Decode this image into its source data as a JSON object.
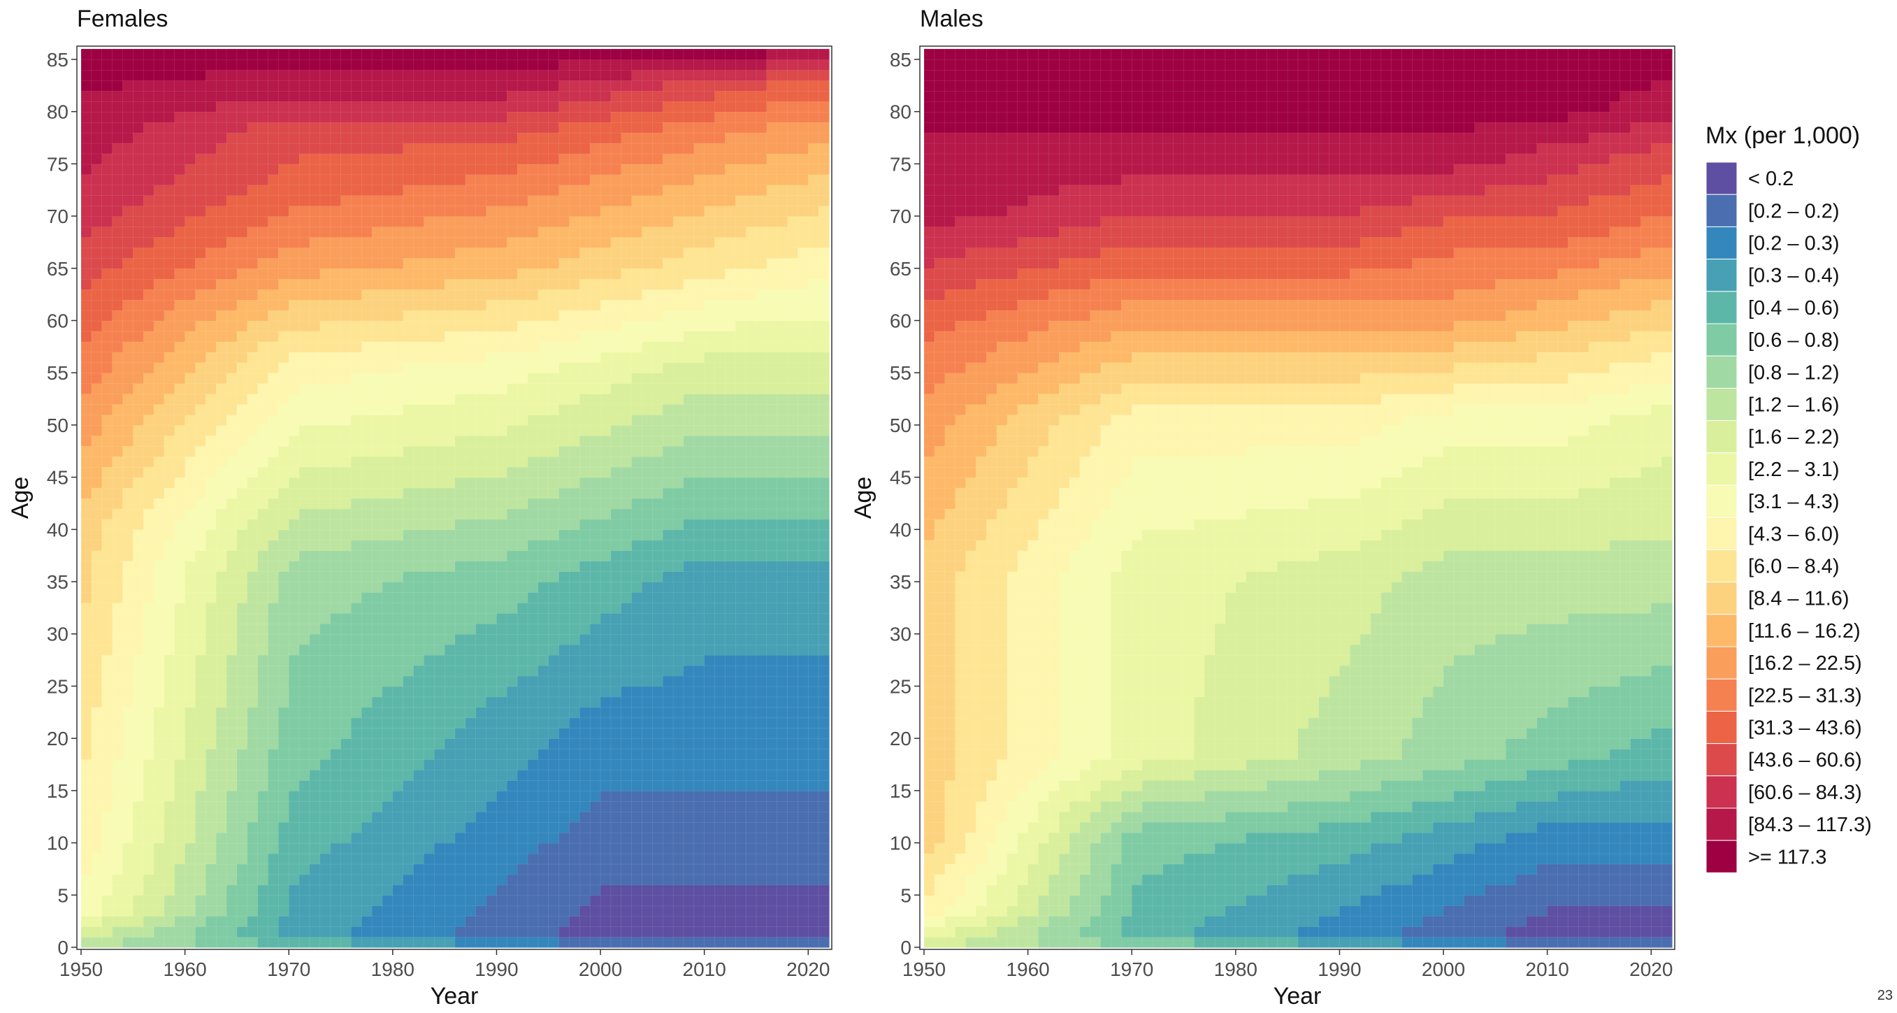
{
  "chart_data": {
    "type": "heatmap",
    "panels": [
      {
        "title": "Females",
        "xlabel": "Year",
        "ylabel": "Age",
        "xlim": [
          1950,
          2021
        ],
        "ylim": [
          0,
          85
        ],
        "x_ticks": [
          "1950",
          "1960",
          "1970",
          "1980",
          "1990",
          "2000",
          "2010",
          "2020"
        ],
        "y_ticks": [
          "0",
          "5",
          "10",
          "15",
          "20",
          "25",
          "30",
          "35",
          "40",
          "45",
          "50",
          "55",
          "60",
          "65",
          "70",
          "75",
          "80",
          "85"
        ],
        "anchor_years": [
          1950,
          1970,
          1990,
          2000,
          2010,
          2021
        ],
        "age_profiles": [
          [
            7,
            10,
            11,
            12,
            13,
            15,
            17,
            19,
            21
          ],
          [
            4,
            3,
            4,
            5,
            6,
            11,
            15,
            17,
            18,
            20,
            21
          ],
          [
            2,
            1,
            2,
            3,
            5,
            10,
            14,
            16,
            18,
            20,
            21
          ],
          [
            1,
            0,
            1,
            2,
            4,
            9,
            13,
            15,
            17,
            19,
            21
          ],
          [
            1,
            0,
            1,
            2,
            3,
            8,
            12,
            14,
            16,
            18,
            21
          ],
          [
            1,
            0,
            1,
            2,
            3,
            8,
            11,
            13,
            15,
            17,
            20
          ]
        ],
        "age_knots": [
          [
            0,
            3,
            10,
            25,
            40,
            50,
            60,
            70,
            85
          ],
          [
            0,
            1,
            10,
            20,
            35,
            55,
            65,
            72,
            78,
            82,
            85
          ],
          [
            0,
            1,
            10,
            20,
            35,
            55,
            65,
            72,
            78,
            82,
            85
          ],
          [
            0,
            1,
            10,
            20,
            35,
            55,
            65,
            72,
            78,
            82,
            85
          ],
          [
            0,
            1,
            10,
            20,
            35,
            55,
            65,
            72,
            78,
            82,
            85
          ],
          [
            0,
            1,
            10,
            20,
            35,
            55,
            65,
            72,
            78,
            82,
            85
          ]
        ]
      },
      {
        "title": "Males",
        "xlabel": "Year",
        "ylabel": "Age",
        "xlim": [
          1950,
          2021
        ],
        "ylim": [
          0,
          85
        ],
        "x_ticks": [
          "1950",
          "1960",
          "1970",
          "1980",
          "1990",
          "2000",
          "2010",
          "2020"
        ],
        "y_ticks": [
          "0",
          "5",
          "10",
          "15",
          "20",
          "25",
          "30",
          "35",
          "40",
          "45",
          "50",
          "55",
          "60",
          "65",
          "70",
          "75",
          "80",
          "85"
        ],
        "anchor_years": [
          1950,
          1970,
          1990,
          2000,
          2010,
          2021
        ],
        "age_profiles": [
          [
            8,
            11,
            13,
            13,
            13,
            15,
            17,
            20,
            21
          ],
          [
            5,
            4,
            5,
            9,
            9,
            11,
            15,
            18,
            20,
            21,
            21
          ],
          [
            3,
            2,
            4,
            7,
            8,
            11,
            15,
            18,
            20,
            21,
            21
          ],
          [
            2,
            1,
            3,
            6,
            7,
            10,
            15,
            17,
            20,
            21,
            21
          ],
          [
            1,
            0,
            2,
            5,
            7,
            10,
            14,
            17,
            19,
            21,
            21
          ],
          [
            1,
            0,
            2,
            4,
            7,
            9,
            13,
            16,
            18,
            20,
            21
          ]
        ],
        "age_knots": [
          [
            0,
            3,
            10,
            20,
            35,
            50,
            60,
            70,
            85
          ],
          [
            0,
            1,
            10,
            18,
            35,
            50,
            60,
            68,
            75,
            80,
            85
          ],
          [
            0,
            1,
            10,
            18,
            35,
            50,
            60,
            68,
            75,
            80,
            85
          ],
          [
            0,
            1,
            10,
            18,
            35,
            50,
            60,
            68,
            75,
            80,
            85
          ],
          [
            0,
            1,
            10,
            18,
            35,
            50,
            60,
            68,
            75,
            80,
            85
          ],
          [
            0,
            1,
            10,
            18,
            35,
            50,
            60,
            68,
            75,
            80,
            85
          ]
        ]
      }
    ],
    "legend": {
      "title": "Mx (per 1,000)",
      "placement": "right",
      "classes": [
        {
          "label": "< 0.2",
          "color": "#5E4FA2"
        },
        {
          "label": "[0.2 – 0.2)",
          "color": "#4A6EB0"
        },
        {
          "label": "[0.2 – 0.3)",
          "color": "#3487BD"
        },
        {
          "label": "[0.3 – 0.4)",
          "color": "#47A0B3"
        },
        {
          "label": "[0.4 – 0.6)",
          "color": "#5DB7A9"
        },
        {
          "label": "[0.6 – 0.8)",
          "color": "#7FCBA4"
        },
        {
          "label": "[0.8 – 1.2)",
          "color": "#A0D9A3"
        },
        {
          "label": "[1.2 – 1.6)",
          "color": "#BEE5A0"
        },
        {
          "label": "[1.6 – 2.2)",
          "color": "#D9EF9B"
        },
        {
          "label": "[2.2 – 3.1)",
          "color": "#EBF7A5"
        },
        {
          "label": "[3.1 – 4.3)",
          "color": "#F7FBB3"
        },
        {
          "label": "[4.3 – 6.0)",
          "color": "#FEF5AF"
        },
        {
          "label": "[6.0 – 8.4)",
          "color": "#FEE593"
        },
        {
          "label": "[8.4 – 11.6)",
          "color": "#FDD27F"
        },
        {
          "label": "[11.6 – 16.2)",
          "color": "#FDB968"
        },
        {
          "label": "[16.2 – 22.5)",
          "color": "#FA9E5B"
        },
        {
          "label": "[22.5 – 31.3)",
          "color": "#F68150"
        },
        {
          "label": "[31.3 – 43.6)",
          "color": "#EB6446"
        },
        {
          "label": "[43.6 – 60.6)",
          "color": "#DC4A4B"
        },
        {
          "label": "[60.6 – 84.3)",
          "color": "#CC3150"
        },
        {
          "label": "[84.3 – 117.3)",
          "color": "#B6184A"
        },
        {
          "label": ">= 117.3",
          "color": "#9E0142"
        }
      ]
    }
  },
  "page_number": "23"
}
